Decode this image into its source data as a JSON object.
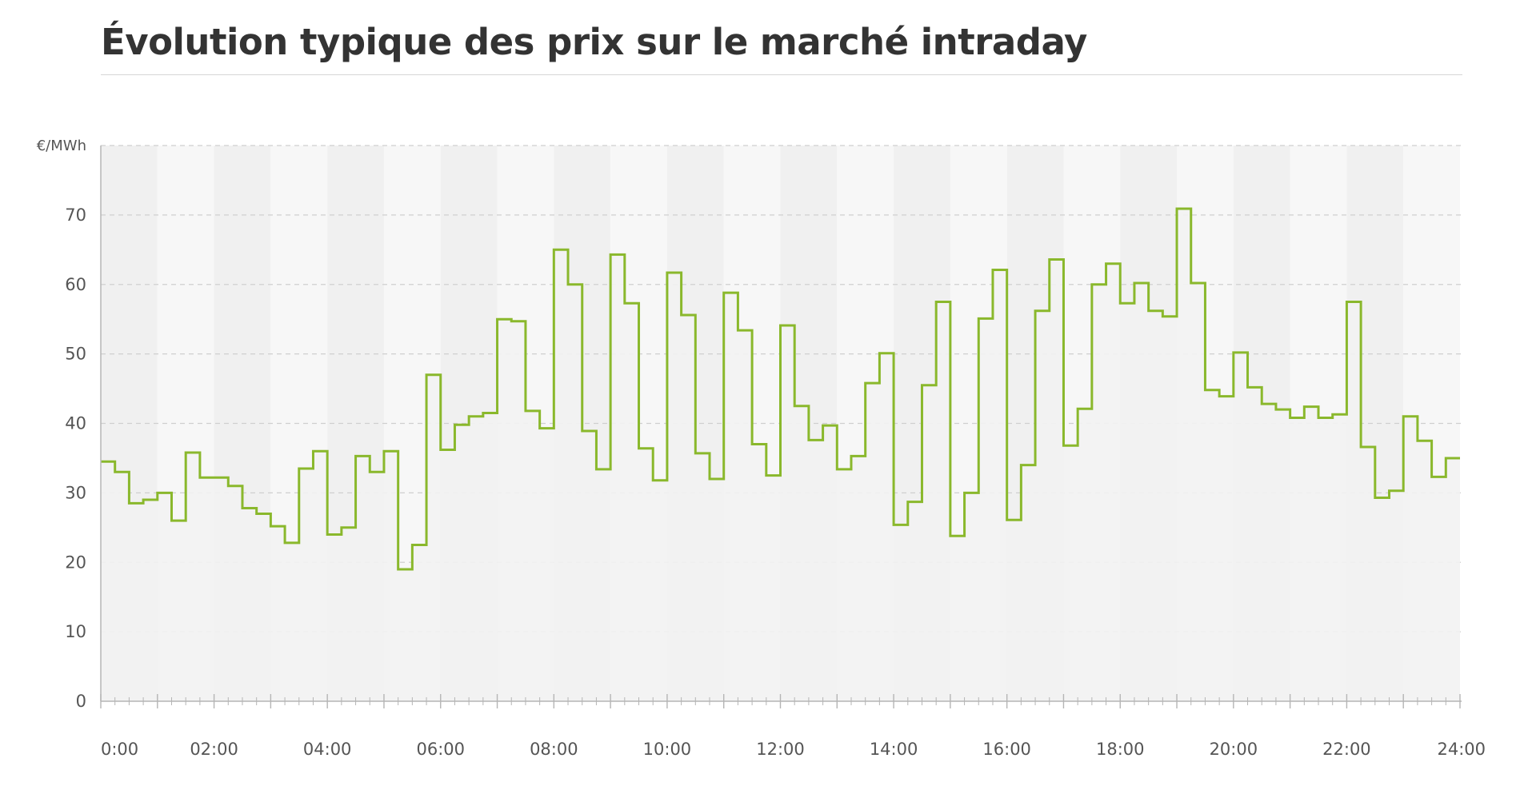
{
  "chart_data": {
    "type": "line",
    "step": true,
    "title": "Évolution typique des prix sur le marché intraday",
    "ylabel": "€/MWh",
    "xlabel": "",
    "xlim": [
      0,
      24
    ],
    "ylim": [
      0,
      80
    ],
    "x_tick_labels": [
      "0:00",
      "02:00",
      "04:00",
      "06:00",
      "08:00",
      "10:00",
      "12:00",
      "14:00",
      "16:00",
      "18:00",
      "20:00",
      "22:00",
      "24:00"
    ],
    "y_ticks": [
      0,
      10,
      20,
      30,
      40,
      50,
      60,
      70
    ],
    "resolution": "15 min",
    "grid": "horizontal dashed",
    "series_color": "#8ab82c",
    "fill_color": "#f2f2f2",
    "values": [
      34.5,
      33,
      28.5,
      29,
      30,
      26,
      35.8,
      32.2,
      32.2,
      31,
      27.8,
      27,
      25.2,
      22.8,
      33.5,
      36,
      24,
      25,
      35.3,
      33,
      36,
      19,
      22.5,
      47,
      36.2,
      39.8,
      41,
      41.5,
      55,
      54.7,
      41.8,
      39.3,
      65,
      60,
      38.9,
      33.4,
      64.3,
      57.3,
      36.4,
      31.8,
      61.7,
      55.6,
      35.7,
      32,
      58.8,
      53.4,
      37,
      32.5,
      54.1,
      42.5,
      37.6,
      39.7,
      33.4,
      35.3,
      45.8,
      50.1,
      25.4,
      28.7,
      45.5,
      57.5,
      23.8,
      30,
      55.1,
      62.1,
      26.1,
      34,
      56.2,
      63.6,
      36.8,
      42.1,
      60,
      63,
      57.3,
      60.2,
      56.2,
      55.4,
      70.9,
      60.2,
      44.8,
      43.9,
      50.2,
      45.2,
      42.8,
      42,
      40.8,
      42.4,
      40.8,
      41.3,
      57.5,
      36.6,
      29.3,
      30.3,
      41,
      37.5,
      32.3,
      35
    ]
  }
}
